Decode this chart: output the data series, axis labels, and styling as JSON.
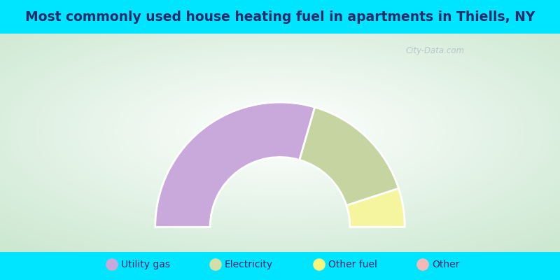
{
  "title": "Most commonly used house heating fuel in apartments in Thiells, NY",
  "title_color": "#2b2b6b",
  "background_outer": "#00e5ff",
  "segments": [
    {
      "label": "Utility gas",
      "value": 59,
      "color": "#c9a8dc"
    },
    {
      "label": "Electricity",
      "value": 31,
      "color": "#c5d4a0"
    },
    {
      "label": "Other fuel",
      "value": 10,
      "color": "#f5f5a0"
    },
    {
      "label": "Other",
      "value": 0,
      "color": "#f5b8b8"
    }
  ],
  "legend_colors": [
    "#c9a8dc",
    "#d4dfa8",
    "#f5f580",
    "#f5b8b8"
  ],
  "legend_labels": [
    "Utility gas",
    "Electricity",
    "Other fuel",
    "Other"
  ],
  "watermark": "City-Data.com",
  "outer_r": 1.0,
  "inner_r": 0.56,
  "title_fontsize": 13.5,
  "legend_fontsize": 10
}
